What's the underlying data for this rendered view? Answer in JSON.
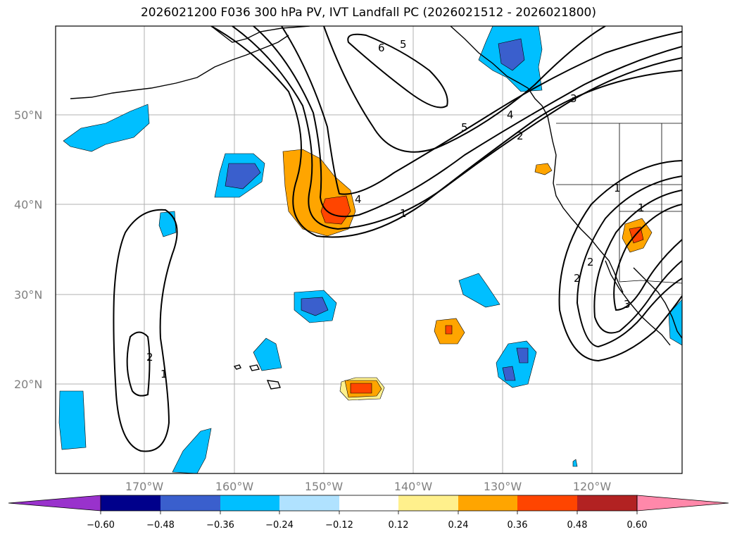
{
  "title": "2026021200 F036 300 hPa PV, IVT Landfall PC (2026021512 - 2026021800)",
  "lat_labels": [
    "50°N",
    "40°N",
    "30°N",
    "20°N"
  ],
  "lon_labels": [
    "170°W",
    "160°W",
    "150°W",
    "140°W",
    "130°W",
    "120°W"
  ],
  "colorbar": {
    "ticks": [
      "−0.60",
      "−0.48",
      "−0.36",
      "−0.24",
      "−0.12",
      "0.12",
      "0.24",
      "0.36",
      "0.48",
      "0.60"
    ],
    "colors": [
      "#9932cc",
      "#00008b",
      "#3a5fcd",
      "#00bfff",
      "#b0e2ff",
      "#ffffff",
      "#fff08c",
      "#ffa500",
      "#ff4500",
      "#b22222",
      "#ff88aa"
    ]
  },
  "contour_labels": [
    "6",
    "5",
    "5",
    "4",
    "4",
    "3",
    "3",
    "2",
    "2",
    "2",
    "1",
    "1",
    "1",
    "2",
    "1"
  ]
}
